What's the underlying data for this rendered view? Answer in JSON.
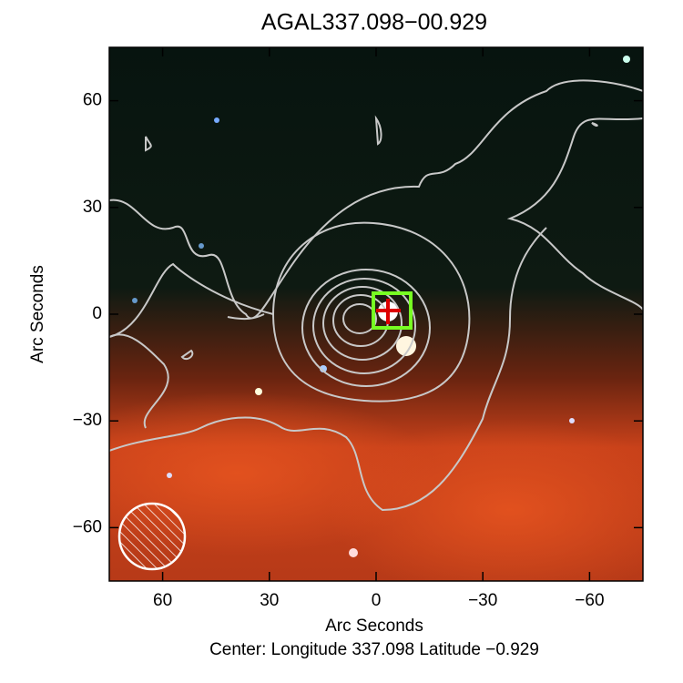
{
  "chart_data": {
    "type": "image",
    "title": "AGAL337.098−00.929",
    "x_label": "Arc Seconds",
    "y_label": "Arc Seconds",
    "subtitle": "Center:  Longitude 337.098 Latitude −0.929",
    "xlim": [
      75,
      -75
    ],
    "ylim": [
      -75,
      75
    ],
    "xticks": [
      60,
      30,
      0,
      {
        "value": -30,
        "label": "−30"
      },
      {
        "value": -60,
        "label": "−60"
      }
    ],
    "yticks": [
      {
        "value": -60,
        "label": "−60"
      },
      {
        "value": -30,
        "label": "−30"
      },
      0,
      30,
      60
    ]
  }
}
